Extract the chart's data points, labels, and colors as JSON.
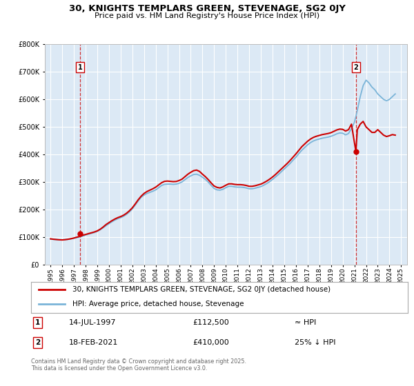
{
  "title": "30, KNIGHTS TEMPLARS GREEN, STEVENAGE, SG2 0JY",
  "subtitle": "Price paid vs. HM Land Registry's House Price Index (HPI)",
  "bg_color": "#dce9f5",
  "sale1_price": 112500,
  "sale2_price": 410000,
  "hpi_line_color": "#7ab4d8",
  "price_line_color": "#cc0000",
  "annotation_box_color": "#cc0000",
  "dashed_line_color": "#cc0000",
  "legend_line1": "30, KNIGHTS TEMPLARS GREEN, STEVENAGE, SG2 0JY (detached house)",
  "legend_line2": "HPI: Average price, detached house, Stevenage",
  "annotation1_date_str": "14-JUL-1997",
  "annotation1_price_str": "£112,500",
  "annotation1_rel": "≈ HPI",
  "annotation2_date_str": "18-FEB-2021",
  "annotation2_price_str": "£410,000",
  "annotation2_rel": "25% ↓ HPI",
  "footer": "Contains HM Land Registry data © Crown copyright and database right 2025.\nThis data is licensed under the Open Government Licence v3.0.",
  "ylim_max": 800000,
  "yticks": [
    0,
    100000,
    200000,
    300000,
    400000,
    500000,
    600000,
    700000,
    800000
  ],
  "hpi_data_x": [
    1995.0,
    1995.25,
    1995.5,
    1995.75,
    1996.0,
    1996.25,
    1996.5,
    1996.75,
    1997.0,
    1997.25,
    1997.5,
    1997.75,
    1998.0,
    1998.25,
    1998.5,
    1998.75,
    1999.0,
    1999.25,
    1999.5,
    1999.75,
    2000.0,
    2000.25,
    2000.5,
    2000.75,
    2001.0,
    2001.25,
    2001.5,
    2001.75,
    2002.0,
    2002.25,
    2002.5,
    2002.75,
    2003.0,
    2003.25,
    2003.5,
    2003.75,
    2004.0,
    2004.25,
    2004.5,
    2004.75,
    2005.0,
    2005.25,
    2005.5,
    2005.75,
    2006.0,
    2006.25,
    2006.5,
    2006.75,
    2007.0,
    2007.25,
    2007.5,
    2007.75,
    2008.0,
    2008.25,
    2008.5,
    2008.75,
    2009.0,
    2009.25,
    2009.5,
    2009.75,
    2010.0,
    2010.25,
    2010.5,
    2010.75,
    2011.0,
    2011.25,
    2011.5,
    2011.75,
    2012.0,
    2012.25,
    2012.5,
    2012.75,
    2013.0,
    2013.25,
    2013.5,
    2013.75,
    2014.0,
    2014.25,
    2014.5,
    2014.75,
    2015.0,
    2015.25,
    2015.5,
    2015.75,
    2016.0,
    2016.25,
    2016.5,
    2016.75,
    2017.0,
    2017.25,
    2017.5,
    2017.75,
    2018.0,
    2018.25,
    2018.5,
    2018.75,
    2019.0,
    2019.25,
    2019.5,
    2019.75,
    2020.0,
    2020.25,
    2020.5,
    2020.75,
    2021.0,
    2021.25,
    2021.5,
    2021.75,
    2022.0,
    2022.25,
    2022.5,
    2022.75,
    2023.0,
    2023.25,
    2023.5,
    2023.75,
    2024.0,
    2024.25,
    2024.5
  ],
  "hpi_data_y": [
    92000,
    91000,
    90000,
    89000,
    89000,
    90000,
    91000,
    93000,
    95000,
    97500,
    100000,
    103000,
    107000,
    110000,
    113000,
    116000,
    120000,
    126000,
    133000,
    141000,
    148000,
    155000,
    161000,
    166000,
    170000,
    175000,
    182000,
    191000,
    202000,
    216000,
    231000,
    244000,
    252000,
    258000,
    262000,
    266000,
    271000,
    279000,
    287000,
    291000,
    292000,
    292000,
    291000,
    292000,
    295000,
    300000,
    308000,
    316000,
    322000,
    327000,
    328000,
    324000,
    317000,
    309000,
    299000,
    287000,
    276000,
    271000,
    270000,
    273000,
    279000,
    284000,
    284000,
    282000,
    281000,
    281000,
    280000,
    278000,
    275000,
    275000,
    277000,
    280000,
    283000,
    288000,
    294000,
    301000,
    309000,
    318000,
    327000,
    337000,
    347000,
    357000,
    367000,
    379000,
    390000,
    403000,
    415000,
    425000,
    435000,
    443000,
    449000,
    453000,
    456000,
    459000,
    461000,
    463000,
    466000,
    470000,
    475000,
    478000,
    477000,
    471000,
    476000,
    494000,
    516000,
    560000,
    610000,
    650000,
    670000,
    660000,
    645000,
    635000,
    620000,
    610000,
    600000,
    595000,
    600000,
    610000,
    620000
  ],
  "price_data_x": [
    1995.0,
    1995.25,
    1995.5,
    1995.75,
    1996.0,
    1996.25,
    1996.5,
    1996.75,
    1997.0,
    1997.25,
    1997.5,
    1997.75,
    1998.0,
    1998.25,
    1998.5,
    1998.75,
    1999.0,
    1999.25,
    1999.5,
    1999.75,
    2000.0,
    2000.25,
    2000.5,
    2000.75,
    2001.0,
    2001.25,
    2001.5,
    2001.75,
    2002.0,
    2002.25,
    2002.5,
    2002.75,
    2003.0,
    2003.25,
    2003.5,
    2003.75,
    2004.0,
    2004.25,
    2004.5,
    2004.75,
    2005.0,
    2005.25,
    2005.5,
    2005.75,
    2006.0,
    2006.25,
    2006.5,
    2006.75,
    2007.0,
    2007.25,
    2007.5,
    2007.75,
    2008.0,
    2008.25,
    2008.5,
    2008.75,
    2009.0,
    2009.25,
    2009.5,
    2009.75,
    2010.0,
    2010.25,
    2010.5,
    2010.75,
    2011.0,
    2011.25,
    2011.5,
    2011.75,
    2012.0,
    2012.25,
    2012.5,
    2012.75,
    2013.0,
    2013.25,
    2013.5,
    2013.75,
    2014.0,
    2014.25,
    2014.5,
    2014.75,
    2015.0,
    2015.25,
    2015.5,
    2015.75,
    2016.0,
    2016.25,
    2016.5,
    2016.75,
    2017.0,
    2017.25,
    2017.5,
    2017.75,
    2018.0,
    2018.25,
    2018.5,
    2018.75,
    2019.0,
    2019.25,
    2019.5,
    2019.75,
    2020.0,
    2020.25,
    2020.5,
    2020.75,
    2021.13,
    2021.25,
    2021.5,
    2021.75,
    2022.0,
    2022.25,
    2022.5,
    2022.75,
    2023.0,
    2023.25,
    2023.5,
    2023.75,
    2024.0,
    2024.25,
    2024.5
  ],
  "price_data_y": [
    93000,
    91500,
    90500,
    89500,
    89000,
    90000,
    91500,
    93500,
    96000,
    99000,
    102000,
    106000,
    109000,
    112000,
    115000,
    118000,
    122000,
    128000,
    136000,
    145000,
    152000,
    159000,
    165000,
    170000,
    174000,
    179000,
    186000,
    195000,
    206000,
    220000,
    235000,
    248000,
    258000,
    265000,
    270000,
    275000,
    281000,
    289000,
    297000,
    302000,
    303000,
    302000,
    301000,
    301500,
    305000,
    310000,
    319000,
    328000,
    335000,
    341000,
    343000,
    338000,
    328000,
    319000,
    308000,
    296000,
    285000,
    280000,
    278000,
    282000,
    288000,
    293000,
    293000,
    291000,
    290000,
    290000,
    289000,
    287000,
    284000,
    284000,
    286000,
    289000,
    292000,
    297000,
    303000,
    310000,
    318000,
    327000,
    337000,
    347000,
    357000,
    367000,
    378000,
    390000,
    402000,
    415000,
    428000,
    438000,
    448000,
    456000,
    462000,
    466000,
    469000,
    472000,
    474000,
    476000,
    479000,
    484000,
    489000,
    492000,
    491000,
    485000,
    490000,
    510000,
    410000,
    490000,
    510000,
    520000,
    500000,
    490000,
    480000,
    480000,
    490000,
    480000,
    470000,
    465000,
    468000,
    472000,
    470000
  ],
  "xlim": [
    1994.5,
    2025.5
  ],
  "xticks": [
    1995,
    1996,
    1997,
    1998,
    1999,
    2000,
    2001,
    2002,
    2003,
    2004,
    2005,
    2006,
    2007,
    2008,
    2009,
    2010,
    2011,
    2012,
    2013,
    2014,
    2015,
    2016,
    2017,
    2018,
    2019,
    2020,
    2021,
    2022,
    2023,
    2024,
    2025
  ],
  "sale1_x": 1997.54,
  "sale2_x": 2021.13
}
